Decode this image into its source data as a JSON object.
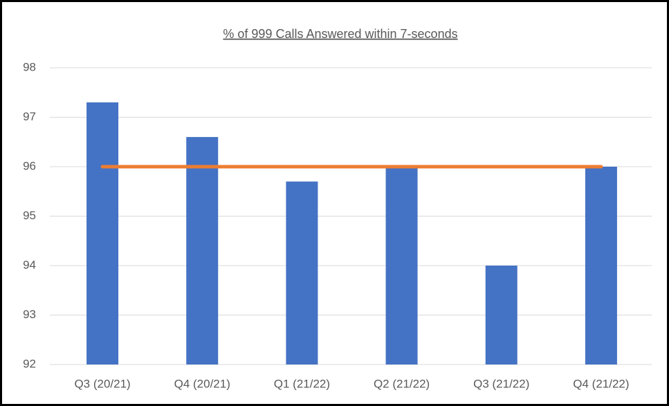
{
  "chart_data": {
    "type": "bar",
    "title": "% of 999 Calls Answered within 7-seconds",
    "categories": [
      "Q3 (20/21)",
      "Q4 (20/21)",
      "Q1 (21/22)",
      "Q2 (21/22)",
      "Q3 (21/22)",
      "Q4 (21/22)"
    ],
    "series": [
      {
        "type": "bar",
        "color": "#4472c4",
        "values": [
          97.3,
          96.6,
          95.7,
          96.0,
          94.0,
          96.0
        ]
      },
      {
        "type": "line",
        "color": "#ed7d31",
        "values": [
          96,
          96,
          96,
          96,
          96,
          96
        ]
      }
    ],
    "ylim": [
      92,
      98
    ],
    "yticks": [
      92,
      93,
      94,
      95,
      96,
      97,
      98
    ],
    "grid": true
  }
}
